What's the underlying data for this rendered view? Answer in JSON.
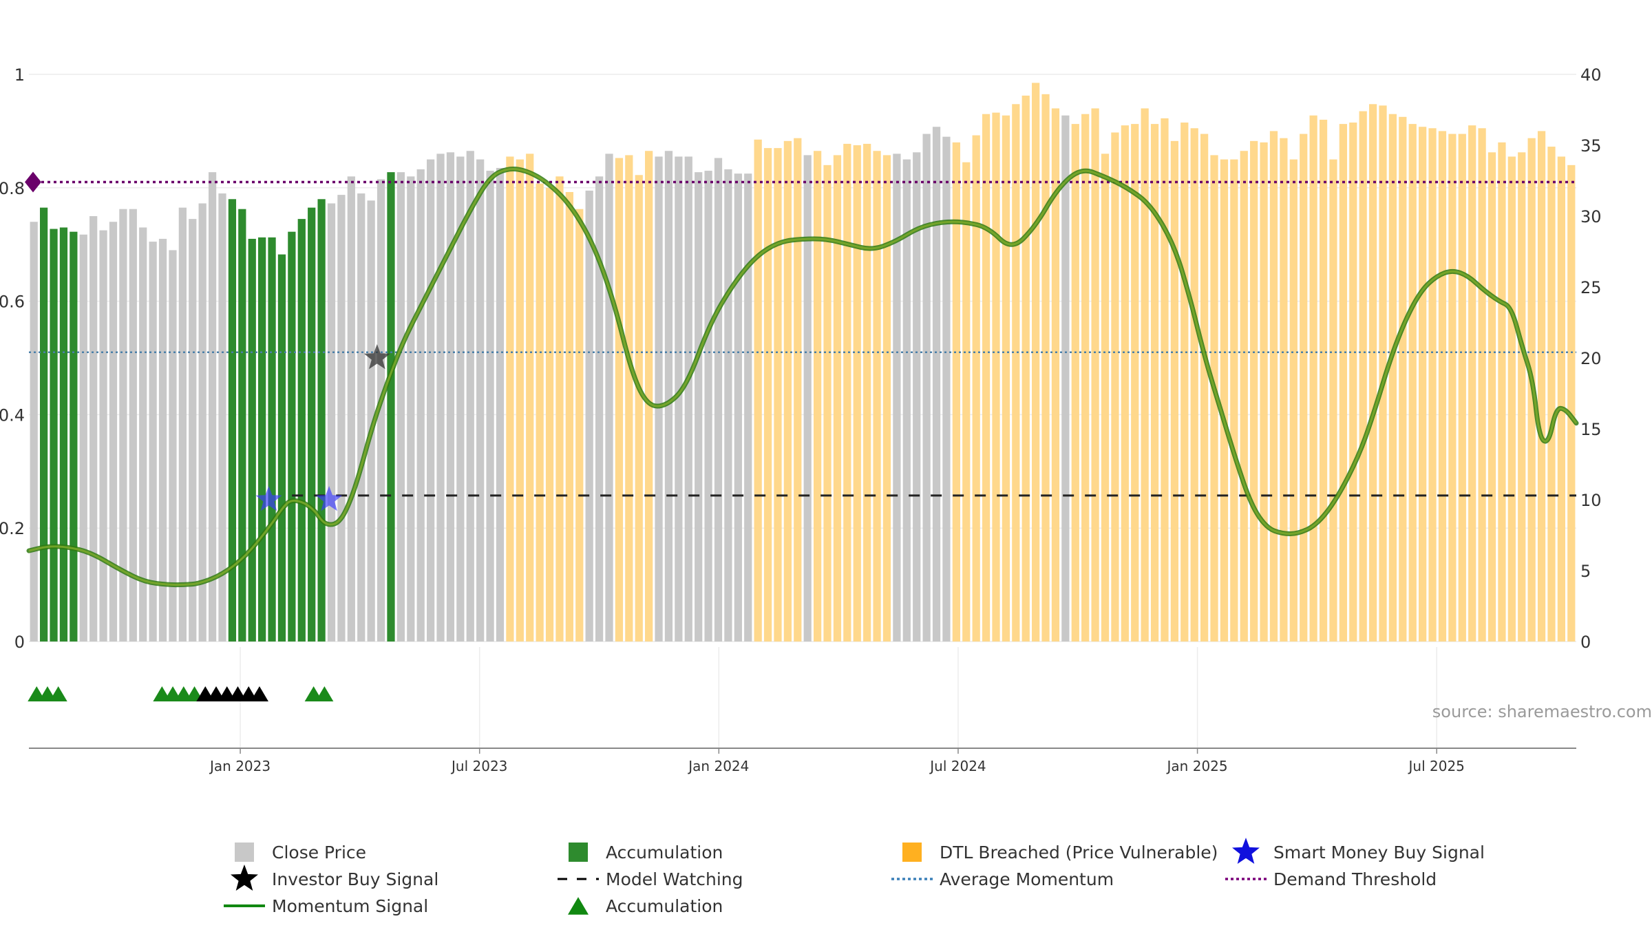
{
  "chart_data": {
    "type": "bar",
    "title": "",
    "x_ticks": [
      "Jan 2023",
      "Jul 2023",
      "Jan 2024",
      "Jul 2024",
      "Jan 2025",
      "Jul 2025"
    ],
    "left_axis": {
      "ticks": [
        "0",
        "0.2",
        "0.4",
        "0.6",
        "0.8",
        "1"
      ],
      "range": [
        0,
        1
      ]
    },
    "right_axis": {
      "ticks": [
        "0",
        "5",
        "10",
        "15",
        "20",
        "25",
        "30",
        "35",
        "40"
      ],
      "range": [
        0,
        40
      ]
    },
    "grid": true,
    "legend_position": "bottom",
    "source_text": "source: sharemaestro.com",
    "colors": {
      "close": "#c8c8c8",
      "accumulation": "#2e8b2e",
      "dtl": "#ffd88c",
      "momentum": "#5a9a1e",
      "avg_momentum": "#4a7fa8",
      "demand": "#6a006a",
      "model_watching": "#222222",
      "triangle_green": "#1a8a1a",
      "triangle_black": "#000000",
      "smart_money": "#3a3aff",
      "investor": "#333333"
    },
    "bar_states": "CAAAACCCCCCCCCCCCCCCAAAAAAAAAACCCCCCACCCCCCCCCCCDDDDDDDDCCCDDDDCCCCCCCCCCDDDDDCDDDDDDDDCCCCCCDDDDDDDDDDDCDDDDDDDDDDDDDDDDDDDDDDDDDDDDDDDDDDDDDDDDDDDDDDDDDDDDDDDDDDDDDDDDDDDDDDDDDDDDDDDDDDDDDDDDDDDDDDDDDDDDDDDDDDDDDDDDDDDDD",
    "bar_values": [
      29.6,
      30.6,
      29.1,
      29.2,
      28.9,
      28.7,
      30.0,
      29.0,
      29.6,
      30.5,
      30.5,
      29.2,
      28.2,
      28.4,
      27.6,
      30.6,
      29.8,
      30.9,
      33.1,
      31.6,
      31.2,
      30.5,
      28.4,
      28.5,
      28.5,
      27.3,
      28.9,
      29.8,
      30.6,
      31.2,
      30.9,
      31.5,
      32.8,
      31.6,
      31.1,
      32.6,
      33.1,
      33.1,
      32.8,
      33.3,
      34.0,
      34.4,
      34.5,
      34.2,
      34.6,
      34.0,
      33.2,
      33.4,
      34.2,
      34.0,
      34.4,
      32.3,
      32.0,
      32.8,
      31.7,
      30.5,
      31.8,
      32.8,
      34.4,
      34.1,
      34.3,
      32.9,
      34.6,
      34.2,
      34.6,
      34.2,
      34.2,
      33.1,
      33.2,
      34.1,
      33.3,
      33.0,
      33.0,
      35.4,
      34.8,
      34.8,
      35.3,
      35.5,
      34.3,
      34.6,
      33.6,
      34.3,
      35.1,
      35.0,
      35.1,
      34.6,
      34.3,
      34.4,
      34.0,
      34.5,
      35.8,
      36.3,
      35.6,
      35.2,
      33.8,
      35.7,
      37.2,
      37.3,
      37.1,
      37.9,
      38.5,
      39.4,
      38.6,
      37.6,
      37.1,
      36.5,
      37.2,
      37.6,
      34.4,
      35.9,
      36.4,
      36.5,
      37.6,
      36.5,
      36.9,
      35.3,
      36.6,
      36.2,
      35.8,
      34.3,
      34.0,
      34.0,
      34.6,
      35.3,
      35.2,
      36.0,
      35.5,
      34.0,
      35.8,
      37.1,
      36.8,
      34.0,
      36.5,
      36.6,
      37.4,
      37.9,
      37.8,
      37.2,
      37.0,
      36.5,
      36.3,
      36.2,
      36.0,
      35.8,
      35.8,
      36.4,
      36.2,
      34.5,
      35.2,
      34.2,
      34.5,
      35.5,
      36.0,
      34.9,
      34.2,
      33.6
    ],
    "momentum_points": [
      [
        0.0,
        0.16
      ],
      [
        0.012,
        0.168
      ],
      [
        0.025,
        0.167
      ],
      [
        0.04,
        0.157
      ],
      [
        0.06,
        0.125
      ],
      [
        0.075,
        0.105
      ],
      [
        0.09,
        0.1
      ],
      [
        0.1,
        0.1
      ],
      [
        0.11,
        0.102
      ],
      [
        0.125,
        0.118
      ],
      [
        0.14,
        0.15
      ],
      [
        0.155,
        0.2
      ],
      [
        0.165,
        0.24
      ],
      [
        0.17,
        0.25
      ],
      [
        0.178,
        0.245
      ],
      [
        0.185,
        0.23
      ],
      [
        0.19,
        0.21
      ],
      [
        0.195,
        0.205
      ],
      [
        0.2,
        0.21
      ],
      [
        0.205,
        0.23
      ],
      [
        0.212,
        0.28
      ],
      [
        0.222,
        0.38
      ],
      [
        0.232,
        0.46
      ],
      [
        0.242,
        0.53
      ],
      [
        0.255,
        0.6
      ],
      [
        0.27,
        0.68
      ],
      [
        0.285,
        0.76
      ],
      [
        0.298,
        0.82
      ],
      [
        0.31,
        0.835
      ],
      [
        0.322,
        0.83
      ],
      [
        0.335,
        0.81
      ],
      [
        0.35,
        0.77
      ],
      [
        0.365,
        0.7
      ],
      [
        0.378,
        0.6
      ],
      [
        0.39,
        0.47
      ],
      [
        0.4,
        0.415
      ],
      [
        0.412,
        0.415
      ],
      [
        0.425,
        0.45
      ],
      [
        0.44,
        0.56
      ],
      [
        0.455,
        0.63
      ],
      [
        0.47,
        0.68
      ],
      [
        0.485,
        0.705
      ],
      [
        0.5,
        0.71
      ],
      [
        0.515,
        0.71
      ],
      [
        0.53,
        0.7
      ],
      [
        0.545,
        0.69
      ],
      [
        0.56,
        0.705
      ],
      [
        0.575,
        0.73
      ],
      [
        0.59,
        0.74
      ],
      [
        0.605,
        0.74
      ],
      [
        0.62,
        0.73
      ],
      [
        0.635,
        0.69
      ],
      [
        0.65,
        0.73
      ],
      [
        0.665,
        0.8
      ],
      [
        0.68,
        0.835
      ],
      [
        0.695,
        0.82
      ],
      [
        0.71,
        0.8
      ],
      [
        0.725,
        0.77
      ],
      [
        0.74,
        0.7
      ],
      [
        0.75,
        0.61
      ],
      [
        0.76,
        0.5
      ],
      [
        0.77,
        0.41
      ],
      [
        0.78,
        0.32
      ],
      [
        0.79,
        0.24
      ],
      [
        0.8,
        0.2
      ],
      [
        0.81,
        0.19
      ],
      [
        0.82,
        0.19
      ],
      [
        0.832,
        0.205
      ],
      [
        0.845,
        0.25
      ],
      [
        0.86,
        0.33
      ],
      [
        0.87,
        0.41
      ],
      [
        0.88,
        0.5
      ],
      [
        0.89,
        0.57
      ],
      [
        0.9,
        0.62
      ],
      [
        0.91,
        0.645
      ],
      [
        0.92,
        0.655
      ],
      [
        0.93,
        0.645
      ],
      [
        0.94,
        0.62
      ],
      [
        0.95,
        0.6
      ],
      [
        0.958,
        0.59
      ],
      [
        0.965,
        0.52
      ],
      [
        0.972,
        0.46
      ],
      [
        0.976,
        0.36
      ],
      [
        0.982,
        0.348
      ],
      [
        0.987,
        0.412
      ],
      [
        0.993,
        0.41
      ],
      [
        1.0,
        0.385
      ]
    ],
    "avg_momentum": 0.51,
    "demand_threshold": 0.81,
    "model_watching_level": 10.3,
    "signals": {
      "smart_money_buy": [
        [
          0.155,
          0.25
        ],
        [
          0.194,
          0.25
        ]
      ],
      "investor_buy": [
        [
          0.225,
          0.5
        ]
      ],
      "demand_marker": [
        [
          0.0,
          0.81
        ]
      ]
    },
    "triangles": {
      "green": [
        0.005,
        0.012,
        0.019,
        0.086,
        0.093,
        0.1,
        0.107,
        0.184,
        0.191
      ],
      "black": [
        0.114,
        0.121,
        0.128,
        0.135,
        0.142,
        0.149
      ]
    },
    "legend": [
      {
        "label": "Close Price",
        "symbol": "square",
        "color": "#c8c8c8"
      },
      {
        "label": "Accumulation",
        "symbol": "square",
        "color": "#2e8b2e"
      },
      {
        "label": "DTL Breached (Price Vulnerable)",
        "symbol": "square",
        "color": "#ffb020"
      },
      {
        "label": "Smart Money Buy Signal",
        "symbol": "star",
        "color": "#1010dd"
      },
      {
        "label": "Investor Buy Signal",
        "symbol": "star",
        "color": "#000000"
      },
      {
        "label": "Model Watching",
        "symbol": "dash",
        "color": "#000000"
      },
      {
        "label": "Average Momentum",
        "symbol": "dot",
        "color": "#3a7fb8"
      },
      {
        "label": "Demand Threshold",
        "symbol": "dot",
        "color": "#7a007a"
      },
      {
        "label": "Momentum Signal",
        "symbol": "line",
        "color": "#118811"
      },
      {
        "label": "Accumulation",
        "symbol": "triangle",
        "color": "#118811"
      }
    ]
  }
}
